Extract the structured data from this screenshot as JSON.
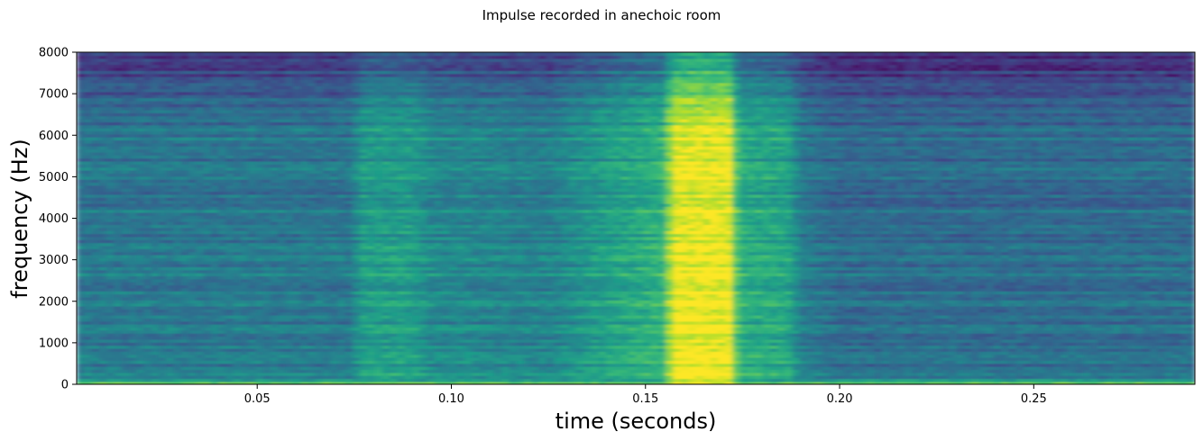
{
  "chart_data": {
    "type": "heatmap",
    "title": "Impulse recorded in anechoic room",
    "xlabel": "time (seconds)",
    "ylabel": "frequency (Hz)",
    "xlim": [
      0.0035,
      0.2915
    ],
    "ylim": [
      0,
      8000
    ],
    "xticks": [
      0.05,
      0.1,
      0.15,
      0.2,
      0.25
    ],
    "xtick_labels": [
      "0.05",
      "0.10",
      "0.15",
      "0.20",
      "0.25"
    ],
    "yticks": [
      0,
      1000,
      2000,
      3000,
      4000,
      5000,
      6000,
      7000,
      8000
    ],
    "ytick_labels": [
      "0",
      "1000",
      "2000",
      "3000",
      "4000",
      "5000",
      "6000",
      "7000",
      "8000"
    ],
    "colormap": "viridis",
    "grid": false,
    "legend": "none",
    "intensity_profile_time": [
      {
        "t": 0.0035,
        "level": 0.4
      },
      {
        "t": 0.074,
        "level": 0.4
      },
      {
        "t": 0.077,
        "level": 0.55
      },
      {
        "t": 0.09,
        "level": 0.55
      },
      {
        "t": 0.095,
        "level": 0.47
      },
      {
        "t": 0.125,
        "level": 0.44
      },
      {
        "t": 0.14,
        "level": 0.56
      },
      {
        "t": 0.155,
        "level": 0.65
      },
      {
        "t": 0.157,
        "level": 0.97
      },
      {
        "t": 0.172,
        "level": 0.97
      },
      {
        "t": 0.174,
        "level": 0.62
      },
      {
        "t": 0.187,
        "level": 0.58
      },
      {
        "t": 0.19,
        "level": 0.42
      },
      {
        "t": 0.2,
        "level": 0.35
      },
      {
        "t": 0.2915,
        "level": 0.36
      }
    ],
    "intensity_profile_freq": [
      {
        "f": 0,
        "level": 0.85
      },
      {
        "f": 150,
        "level": 0.5
      },
      {
        "f": 5000,
        "level": 0.5
      },
      {
        "f": 6200,
        "level": 0.48
      },
      {
        "f": 7000,
        "level": 0.36
      },
      {
        "f": 8000,
        "level": 0.2
      }
    ],
    "colors": {
      "low": "#440154",
      "mid": "#21918c",
      "high": "#fde725"
    }
  }
}
